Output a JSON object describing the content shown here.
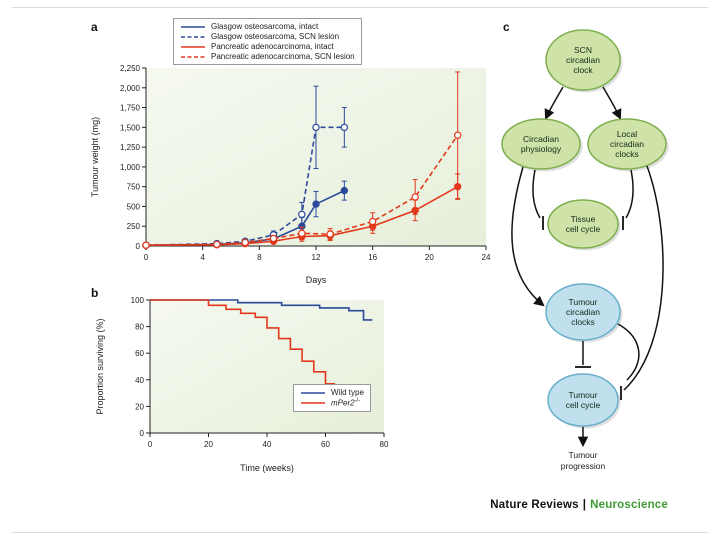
{
  "panels": {
    "a": {
      "label": "a"
    },
    "b": {
      "label": "b"
    },
    "c": {
      "label": "c"
    }
  },
  "footer": {
    "brand": "Nature Reviews",
    "separator": "|",
    "journal": "Neuroscience"
  },
  "colors": {
    "blue": "#2c4a9c",
    "red": "#e2391b",
    "plot_bg_light": "#f5f9f0",
    "plot_bg_dark": "#e6efda",
    "axis": "#222222",
    "green_fill": "#cfe3a8",
    "green_stroke": "#7fae4e",
    "blue_fill": "#bfe0ec",
    "blue_stroke": "#67aecb",
    "journal_green": "#3f9b35"
  },
  "chart_data": [
    {
      "type": "line",
      "panel": "a",
      "xlabel": "Days",
      "ylabel": "Tumour weight (mg)",
      "xlim": [
        0,
        24
      ],
      "ylim": [
        0,
        2250
      ],
      "xticks": [
        0,
        4,
        8,
        12,
        16,
        20,
        24
      ],
      "yticks": [
        0,
        250,
        500,
        750,
        1000,
        1250,
        1500,
        1750,
        2000,
        2250
      ],
      "ytick_labels": [
        "0",
        "250",
        "500",
        "750",
        "1,000",
        "1,250",
        "1,500",
        "1,750",
        "2,000",
        "2,250"
      ],
      "grid": false,
      "legend_position": "top",
      "series": [
        {
          "name": "Glasgow osteosarcoma, intact",
          "color": "#2c4a9c",
          "dash": "solid",
          "marker": "filled",
          "x": [
            0,
            5,
            7,
            9,
            11,
            12,
            14
          ],
          "y": [
            10,
            20,
            40,
            90,
            250,
            530,
            700
          ],
          "yerr": [
            0,
            0,
            15,
            40,
            110,
            160,
            120
          ]
        },
        {
          "name": "Glasgow osteosarcoma, SCN lesion",
          "color": "#2c4a9c",
          "dash": "dashed",
          "marker": "open",
          "x": [
            0,
            5,
            7,
            9,
            11,
            12,
            14
          ],
          "y": [
            10,
            30,
            60,
            140,
            400,
            1500,
            1500
          ],
          "yerr": [
            0,
            0,
            20,
            50,
            150,
            520,
            250
          ]
        },
        {
          "name": "Pancreatic adenocarcinoma, intact",
          "color": "#e2391b",
          "dash": "solid",
          "marker": "filled",
          "x": [
            0,
            5,
            7,
            9,
            11,
            13,
            16,
            19,
            22
          ],
          "y": [
            10,
            15,
            30,
            60,
            120,
            130,
            250,
            450,
            750
          ],
          "yerr": [
            0,
            0,
            10,
            25,
            60,
            60,
            90,
            130,
            160
          ]
        },
        {
          "name": "Pancreatic adenocarcinoma, SCN lesion",
          "color": "#e2391b",
          "dash": "dashed",
          "marker": "open",
          "x": [
            0,
            5,
            7,
            9,
            11,
            13,
            16,
            19,
            22
          ],
          "y": [
            10,
            20,
            45,
            95,
            160,
            150,
            310,
            620,
            1400
          ],
          "yerr": [
            0,
            0,
            15,
            35,
            80,
            70,
            110,
            220,
            800
          ]
        }
      ]
    },
    {
      "type": "line",
      "panel": "b",
      "step": true,
      "xlabel": "Time (weeks)",
      "ylabel": "Proportion surviving (%)",
      "xlim": [
        0,
        80
      ],
      "ylim": [
        0,
        100
      ],
      "xticks": [
        0,
        20,
        40,
        60,
        80
      ],
      "yticks": [
        0,
        20,
        40,
        60,
        80,
        100
      ],
      "grid": false,
      "legend_position": "bottom-right",
      "series": [
        {
          "name": "Wild type",
          "color": "#2c4a9c",
          "dash": "solid",
          "x": [
            0,
            30,
            45,
            58,
            68,
            73,
            76
          ],
          "y": [
            100,
            98,
            96,
            94,
            92,
            85,
            85
          ]
        },
        {
          "name": "mPer2-/-",
          "name_base": "mPer2",
          "name_sup": "-/-",
          "italic": true,
          "color": "#e2391b",
          "dash": "solid",
          "x": [
            0,
            20,
            26,
            31,
            36,
            40,
            44,
            48,
            52,
            56,
            60,
            63,
            72
          ],
          "y": [
            100,
            96,
            93,
            90,
            87,
            79,
            71,
            63,
            54,
            46,
            37,
            30,
            30
          ]
        }
      ]
    }
  ],
  "diagram": {
    "nodes": [
      {
        "id": "scn",
        "kind": "green",
        "lines": [
          "SCN",
          "circadian",
          "clock"
        ]
      },
      {
        "id": "circadian-physiology",
        "kind": "green",
        "lines": [
          "Circadian",
          "physiology"
        ]
      },
      {
        "id": "local-clocks",
        "kind": "green",
        "lines": [
          "Local",
          "circadian",
          "clocks"
        ]
      },
      {
        "id": "tissue-cell-cycle",
        "kind": "green",
        "lines": [
          "Tissue",
          "cell cycle"
        ]
      },
      {
        "id": "tumour-clocks",
        "kind": "blue",
        "lines": [
          "Tumour",
          "circadian",
          "clocks"
        ]
      },
      {
        "id": "tumour-cell-cycle",
        "kind": "blue",
        "lines": [
          "Tumour",
          "cell cycle"
        ]
      }
    ],
    "terminal": {
      "lines": [
        "Tumour",
        "progression"
      ]
    }
  }
}
